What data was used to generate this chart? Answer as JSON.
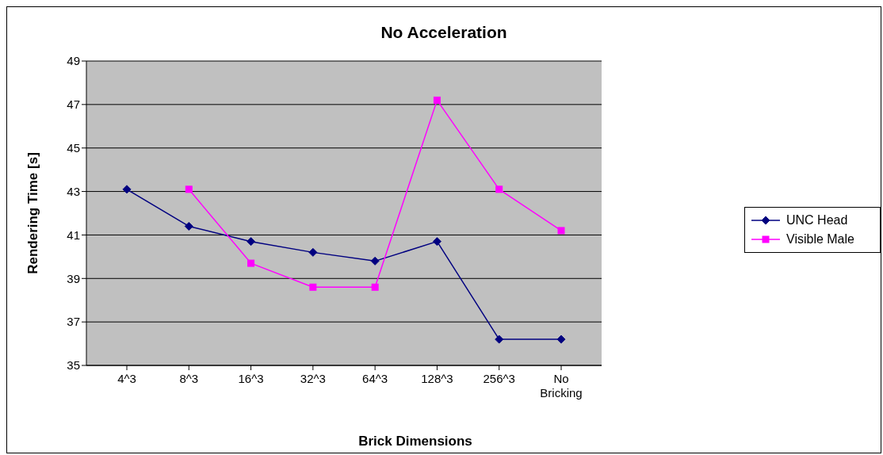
{
  "chart_data": {
    "type": "line",
    "title": "No Acceleration",
    "xlabel": "Brick Dimensions",
    "ylabel": "Rendering Time [s]",
    "categories": [
      "4^3",
      "8^3",
      "16^3",
      "32^3",
      "64^3",
      "128^3",
      "256^3",
      "No Bricking"
    ],
    "series": [
      {
        "name": "UNC Head",
        "color": "#000080",
        "marker": "diamond",
        "values": [
          43.1,
          41.4,
          40.7,
          40.2,
          39.8,
          40.7,
          36.2,
          36.2
        ]
      },
      {
        "name": "Visible Male",
        "color": "#ff00ff",
        "marker": "square",
        "values": [
          null,
          43.1,
          39.7,
          38.6,
          38.6,
          47.2,
          43.1,
          41.2
        ]
      }
    ],
    "ylim": [
      35,
      49
    ],
    "yticks": [
      35,
      37,
      39,
      41,
      43,
      45,
      47,
      49
    ],
    "grid": "y",
    "legend": "right",
    "line_style": "solid"
  }
}
